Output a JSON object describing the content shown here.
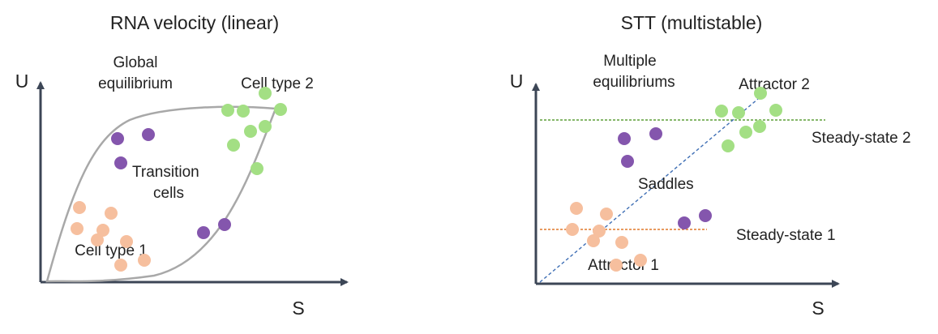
{
  "panels": {
    "left": {
      "title": "RNA velocity (linear)",
      "y_axis": "U",
      "x_axis": "S",
      "labels": {
        "global_line1": "Global",
        "global_line2": "equilibrium",
        "cell_type_2": "Cell type 2",
        "transition_line1": "Transition",
        "transition_line2": "cells",
        "cell_type_1": "Cell type 1"
      }
    },
    "right": {
      "title": "STT (multistable)",
      "y_axis": "U",
      "x_axis": "S",
      "labels": {
        "multiple_line1": "Multiple",
        "multiple_line2": "equilibriums",
        "attractor_2": "Attractor 2",
        "steady_state_2": "Steady-state 2",
        "saddles": "Saddles",
        "steady_state_1": "Steady-state 1",
        "attractor_1": "Attractor 1"
      }
    }
  },
  "colors": {
    "orange_cells": "#f6bf9e",
    "green_cells": "#a3df84",
    "purple_cells": "#8456ad",
    "axis": "#3c4656",
    "envelope": "#a8a8a8",
    "steady_state_1_line": "#e0782a",
    "steady_state_2_line": "#5f9f38",
    "diagonal_line": "#3f6fb5"
  }
}
